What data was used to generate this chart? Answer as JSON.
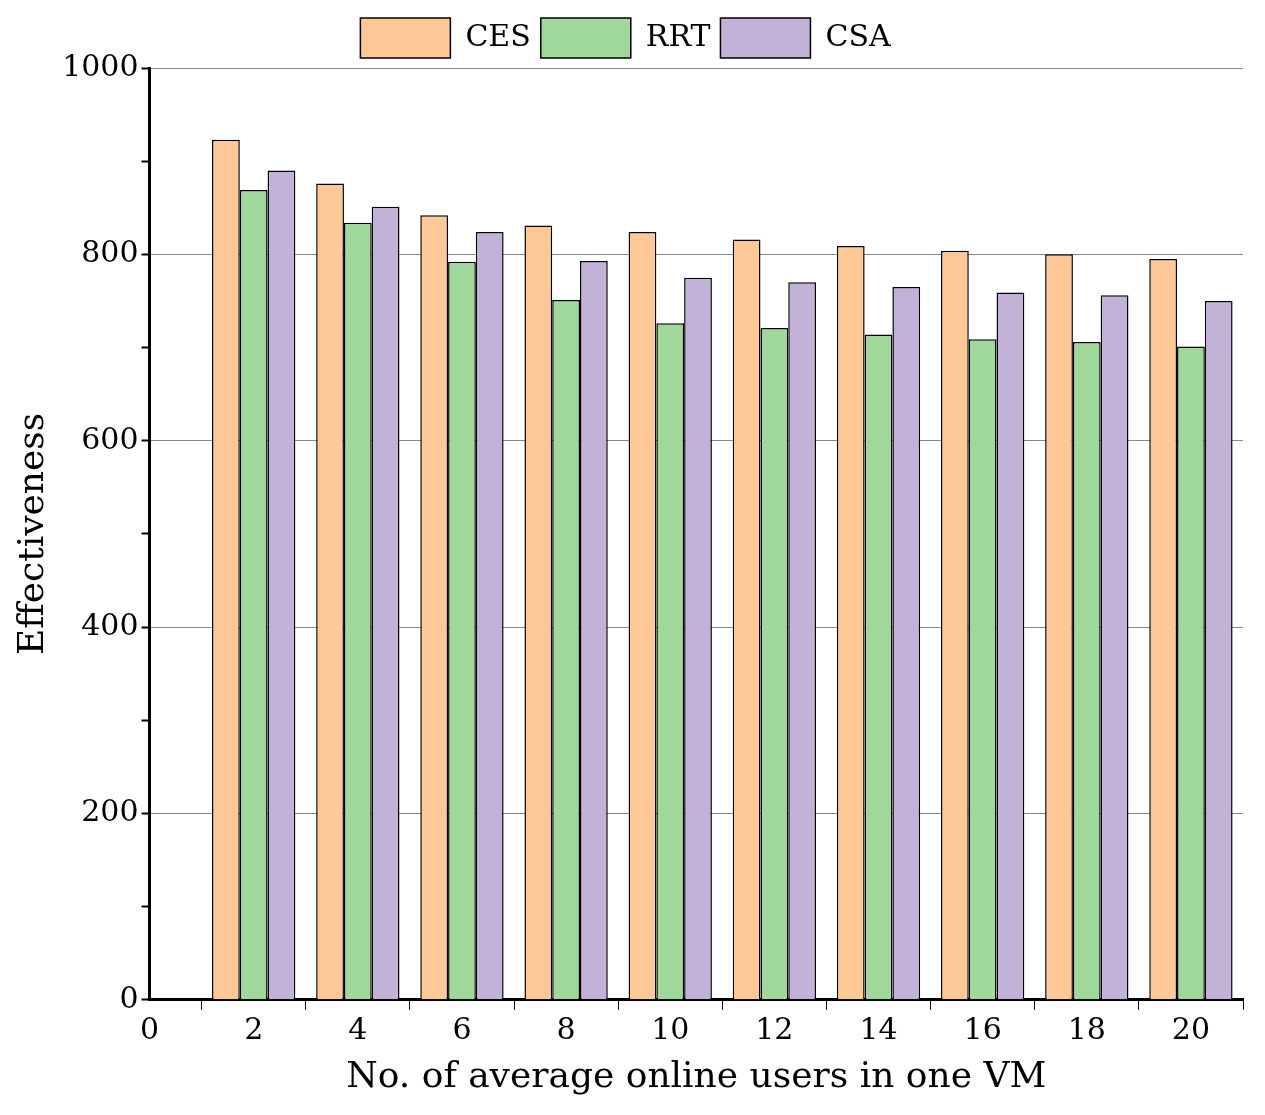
{
  "chart_data": {
    "type": "bar",
    "xlabel": "No. of average online users in one VM",
    "ylabel": "Effectiveness",
    "x": [
      2,
      4,
      6,
      8,
      10,
      12,
      14,
      16,
      18,
      20
    ],
    "series": [
      {
        "name": "CES",
        "color": "#ffc896",
        "values": [
          923,
          876,
          842,
          831,
          824,
          816,
          809,
          804,
          800,
          795
        ]
      },
      {
        "name": "RRT",
        "color": "#a0d89c",
        "values": [
          869,
          834,
          792,
          751,
          726,
          721,
          714,
          709,
          706,
          701
        ]
      },
      {
        "name": "CSA",
        "color": "#c3b2d8",
        "values": [
          890,
          851,
          824,
          793,
          775,
          770,
          765,
          759,
          756,
          750
        ]
      }
    ],
    "xlim": [
      0,
      21
    ],
    "xticks": [
      0,
      2,
      4,
      6,
      8,
      10,
      12,
      14,
      16,
      18,
      20
    ],
    "ylim": [
      0,
      1000
    ],
    "yticks": [
      0,
      {
        "value": 100,
        "label": null
      },
      200,
      {
        "value": 300,
        "label": null
      },
      400,
      {
        "value": 500,
        "label": null
      },
      600,
      {
        "value": 700,
        "label": null
      },
      800,
      {
        "value": 900,
        "label": null
      },
      1000
    ],
    "grid": "y",
    "legend": "top"
  }
}
